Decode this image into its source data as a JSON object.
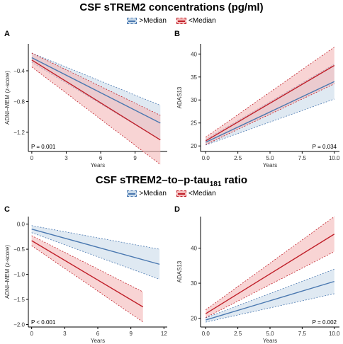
{
  "sections": [
    {
      "title": "CSF sTREM2 concentrations (pg/ml)"
    },
    {
      "title_main": "CSF sTREM2–to–p-tau",
      "title_sub": "181",
      "title_end": " ratio"
    }
  ],
  "legend": {
    "items": [
      {
        "label": ">Median",
        "color": "#4a78b0",
        "fill": "#c9daea"
      },
      {
        "label": "<Median",
        "color": "#c0202a",
        "fill": "#f4b8b8"
      }
    ]
  },
  "chart_data": [
    {
      "panel": "A",
      "type": "line",
      "xlabel": "Years",
      "ylabel": "ADNI–MEM (z-score)",
      "xlim": [
        -0.3,
        11.8
      ],
      "ylim": [
        -1.45,
        -0.05
      ],
      "xticks": [
        0,
        3,
        6,
        9
      ],
      "yticks": [
        -1.2,
        -0.8,
        -0.4
      ],
      "xtick_labels": [
        "0",
        "3",
        "6",
        "9"
      ],
      "ytick_labels": [
        "−1.2",
        "−0.8",
        "−0.4"
      ],
      "annotation": "P = 0.001",
      "annotation_pos": "bottom-left",
      "series": [
        {
          "name": ">Median",
          "x": [
            0,
            11.2
          ],
          "y": [
            -0.23,
            -1.08
          ],
          "lower": [
            -0.29,
            -1.3
          ],
          "upper": [
            -0.17,
            -0.85
          ]
        },
        {
          "name": "<Median",
          "x": [
            0,
            11.2
          ],
          "y": [
            -0.26,
            -1.3
          ],
          "lower": [
            -0.35,
            -1.62
          ],
          "upper": [
            -0.17,
            -0.98
          ]
        }
      ]
    },
    {
      "panel": "B",
      "type": "line",
      "xlabel": "Years",
      "ylabel": "ADAS13",
      "xlim": [
        -0.4,
        10.4
      ],
      "ylim": [
        18.8,
        42.2
      ],
      "xticks": [
        0,
        2.5,
        5,
        7.5,
        10
      ],
      "yticks": [
        20,
        25,
        30,
        35,
        40
      ],
      "xtick_labels": [
        "0.0",
        "2.5",
        "5.0",
        "7.5",
        "10.0"
      ],
      "ytick_labels": [
        "20",
        "25",
        "30",
        "35",
        "40"
      ],
      "annotation": "P = 0.034",
      "annotation_pos": "bottom-right",
      "series": [
        {
          "name": ">Median",
          "x": [
            0,
            10
          ],
          "y": [
            20.8,
            34
          ],
          "lower": [
            20.2,
            30.2
          ],
          "upper": [
            21.4,
            37.8
          ]
        },
        {
          "name": "<Median",
          "x": [
            0,
            10
          ],
          "y": [
            21.1,
            37.5
          ],
          "lower": [
            20.3,
            33.5
          ],
          "upper": [
            21.9,
            41.5
          ]
        }
      ]
    },
    {
      "panel": "C",
      "type": "line",
      "xlabel": "Years",
      "ylabel": "ADNI–MEM (z-score)",
      "xlim": [
        -0.3,
        12.3
      ],
      "ylim": [
        -2.05,
        0.15
      ],
      "xticks": [
        0,
        3,
        6,
        9,
        12
      ],
      "yticks": [
        -2.0,
        -1.5,
        -1.0,
        -0.5,
        0.0
      ],
      "xtick_labels": [
        "0",
        "3",
        "6",
        "9",
        "12"
      ],
      "ytick_labels": [
        "−2.0",
        "−1.5",
        "−1.0",
        "−0.5",
        "0.0"
      ],
      "annotation": "P < 0.001",
      "annotation_pos": "bottom-left",
      "series": [
        {
          "name": ">Median",
          "x": [
            0,
            11.6
          ],
          "y": [
            -0.1,
            -0.8
          ],
          "lower": [
            -0.17,
            -1.1
          ],
          "upper": [
            -0.03,
            -0.5
          ]
        },
        {
          "name": "<Median",
          "x": [
            0,
            10.1
          ],
          "y": [
            -0.33,
            -1.65
          ],
          "lower": [
            -0.43,
            -1.95
          ],
          "upper": [
            -0.23,
            -1.35
          ]
        }
      ]
    },
    {
      "panel": "D",
      "type": "line",
      "xlabel": "Years",
      "ylabel": "ADAS13",
      "xlim": [
        -0.4,
        10.4
      ],
      "ylim": [
        17.5,
        49
      ],
      "xticks": [
        0,
        2.5,
        5,
        7.5,
        10
      ],
      "yticks": [
        20,
        30,
        40
      ],
      "xtick_labels": [
        "0.0",
        "2.5",
        "5.0",
        "7.5",
        "10.0"
      ],
      "ytick_labels": [
        "20",
        "30",
        "40"
      ],
      "annotation": "P = 0.002",
      "annotation_pos": "bottom-right",
      "series": [
        {
          "name": ">Median",
          "x": [
            0,
            10
          ],
          "y": [
            19.5,
            30.5
          ],
          "lower": [
            18.9,
            27
          ],
          "upper": [
            20.1,
            34
          ]
        },
        {
          "name": "<Median",
          "x": [
            0,
            10
          ],
          "y": [
            21.3,
            44
          ],
          "lower": [
            20.2,
            39
          ],
          "upper": [
            22.4,
            49
          ]
        }
      ]
    }
  ]
}
